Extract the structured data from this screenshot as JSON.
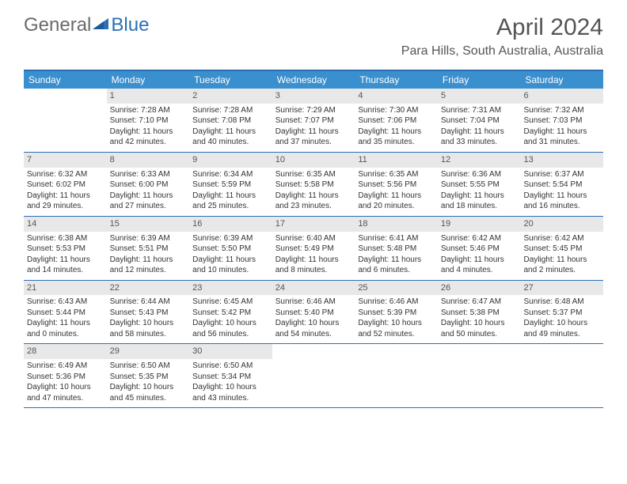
{
  "logo": {
    "part1": "General",
    "part2": "Blue"
  },
  "title": "April 2024",
  "location": "Para Hills, South Australia, Australia",
  "colors": {
    "header_bg": "#3a8fce",
    "border": "#2b6fb5",
    "daynum_bg": "#e8e8e8",
    "text": "#333333",
    "title_text": "#555555"
  },
  "day_labels": [
    "Sunday",
    "Monday",
    "Tuesday",
    "Wednesday",
    "Thursday",
    "Friday",
    "Saturday"
  ],
  "weeks": [
    [
      null,
      {
        "n": "1",
        "sr": "Sunrise: 7:28 AM",
        "ss": "Sunset: 7:10 PM",
        "dl": "Daylight: 11 hours and 42 minutes."
      },
      {
        "n": "2",
        "sr": "Sunrise: 7:28 AM",
        "ss": "Sunset: 7:08 PM",
        "dl": "Daylight: 11 hours and 40 minutes."
      },
      {
        "n": "3",
        "sr": "Sunrise: 7:29 AM",
        "ss": "Sunset: 7:07 PM",
        "dl": "Daylight: 11 hours and 37 minutes."
      },
      {
        "n": "4",
        "sr": "Sunrise: 7:30 AM",
        "ss": "Sunset: 7:06 PM",
        "dl": "Daylight: 11 hours and 35 minutes."
      },
      {
        "n": "5",
        "sr": "Sunrise: 7:31 AM",
        "ss": "Sunset: 7:04 PM",
        "dl": "Daylight: 11 hours and 33 minutes."
      },
      {
        "n": "6",
        "sr": "Sunrise: 7:32 AM",
        "ss": "Sunset: 7:03 PM",
        "dl": "Daylight: 11 hours and 31 minutes."
      }
    ],
    [
      {
        "n": "7",
        "sr": "Sunrise: 6:32 AM",
        "ss": "Sunset: 6:02 PM",
        "dl": "Daylight: 11 hours and 29 minutes."
      },
      {
        "n": "8",
        "sr": "Sunrise: 6:33 AM",
        "ss": "Sunset: 6:00 PM",
        "dl": "Daylight: 11 hours and 27 minutes."
      },
      {
        "n": "9",
        "sr": "Sunrise: 6:34 AM",
        "ss": "Sunset: 5:59 PM",
        "dl": "Daylight: 11 hours and 25 minutes."
      },
      {
        "n": "10",
        "sr": "Sunrise: 6:35 AM",
        "ss": "Sunset: 5:58 PM",
        "dl": "Daylight: 11 hours and 23 minutes."
      },
      {
        "n": "11",
        "sr": "Sunrise: 6:35 AM",
        "ss": "Sunset: 5:56 PM",
        "dl": "Daylight: 11 hours and 20 minutes."
      },
      {
        "n": "12",
        "sr": "Sunrise: 6:36 AM",
        "ss": "Sunset: 5:55 PM",
        "dl": "Daylight: 11 hours and 18 minutes."
      },
      {
        "n": "13",
        "sr": "Sunrise: 6:37 AM",
        "ss": "Sunset: 5:54 PM",
        "dl": "Daylight: 11 hours and 16 minutes."
      }
    ],
    [
      {
        "n": "14",
        "sr": "Sunrise: 6:38 AM",
        "ss": "Sunset: 5:53 PM",
        "dl": "Daylight: 11 hours and 14 minutes."
      },
      {
        "n": "15",
        "sr": "Sunrise: 6:39 AM",
        "ss": "Sunset: 5:51 PM",
        "dl": "Daylight: 11 hours and 12 minutes."
      },
      {
        "n": "16",
        "sr": "Sunrise: 6:39 AM",
        "ss": "Sunset: 5:50 PM",
        "dl": "Daylight: 11 hours and 10 minutes."
      },
      {
        "n": "17",
        "sr": "Sunrise: 6:40 AM",
        "ss": "Sunset: 5:49 PM",
        "dl": "Daylight: 11 hours and 8 minutes."
      },
      {
        "n": "18",
        "sr": "Sunrise: 6:41 AM",
        "ss": "Sunset: 5:48 PM",
        "dl": "Daylight: 11 hours and 6 minutes."
      },
      {
        "n": "19",
        "sr": "Sunrise: 6:42 AM",
        "ss": "Sunset: 5:46 PM",
        "dl": "Daylight: 11 hours and 4 minutes."
      },
      {
        "n": "20",
        "sr": "Sunrise: 6:42 AM",
        "ss": "Sunset: 5:45 PM",
        "dl": "Daylight: 11 hours and 2 minutes."
      }
    ],
    [
      {
        "n": "21",
        "sr": "Sunrise: 6:43 AM",
        "ss": "Sunset: 5:44 PM",
        "dl": "Daylight: 11 hours and 0 minutes."
      },
      {
        "n": "22",
        "sr": "Sunrise: 6:44 AM",
        "ss": "Sunset: 5:43 PM",
        "dl": "Daylight: 10 hours and 58 minutes."
      },
      {
        "n": "23",
        "sr": "Sunrise: 6:45 AM",
        "ss": "Sunset: 5:42 PM",
        "dl": "Daylight: 10 hours and 56 minutes."
      },
      {
        "n": "24",
        "sr": "Sunrise: 6:46 AM",
        "ss": "Sunset: 5:40 PM",
        "dl": "Daylight: 10 hours and 54 minutes."
      },
      {
        "n": "25",
        "sr": "Sunrise: 6:46 AM",
        "ss": "Sunset: 5:39 PM",
        "dl": "Daylight: 10 hours and 52 minutes."
      },
      {
        "n": "26",
        "sr": "Sunrise: 6:47 AM",
        "ss": "Sunset: 5:38 PM",
        "dl": "Daylight: 10 hours and 50 minutes."
      },
      {
        "n": "27",
        "sr": "Sunrise: 6:48 AM",
        "ss": "Sunset: 5:37 PM",
        "dl": "Daylight: 10 hours and 49 minutes."
      }
    ],
    [
      {
        "n": "28",
        "sr": "Sunrise: 6:49 AM",
        "ss": "Sunset: 5:36 PM",
        "dl": "Daylight: 10 hours and 47 minutes."
      },
      {
        "n": "29",
        "sr": "Sunrise: 6:50 AM",
        "ss": "Sunset: 5:35 PM",
        "dl": "Daylight: 10 hours and 45 minutes."
      },
      {
        "n": "30",
        "sr": "Sunrise: 6:50 AM",
        "ss": "Sunset: 5:34 PM",
        "dl": "Daylight: 10 hours and 43 minutes."
      },
      null,
      null,
      null,
      null
    ]
  ]
}
